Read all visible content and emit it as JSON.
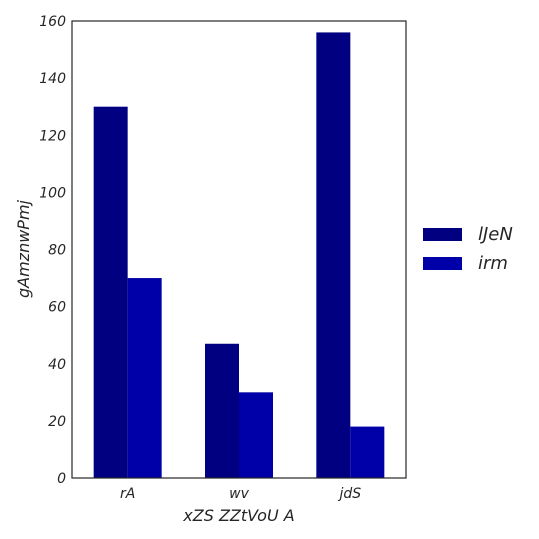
{
  "chart_data": {
    "type": "bar",
    "title": "",
    "xlabel": "xZS ZZtVoU A",
    "ylabel": "gAmznwPmj",
    "categories": [
      "rA",
      "wv",
      "jdS"
    ],
    "series": [
      {
        "name": "lJeN",
        "values": [
          130,
          47,
          156
        ],
        "color": "#000080"
      },
      {
        "name": "irm",
        "values": [
          70,
          30,
          18
        ],
        "color": "#0000a8"
      }
    ],
    "ylim": [
      0,
      160
    ],
    "yticks": [
      "0",
      "20",
      "40",
      "60",
      "80",
      "100",
      "120",
      "140",
      "160"
    ],
    "grid": false,
    "legend": "right"
  }
}
